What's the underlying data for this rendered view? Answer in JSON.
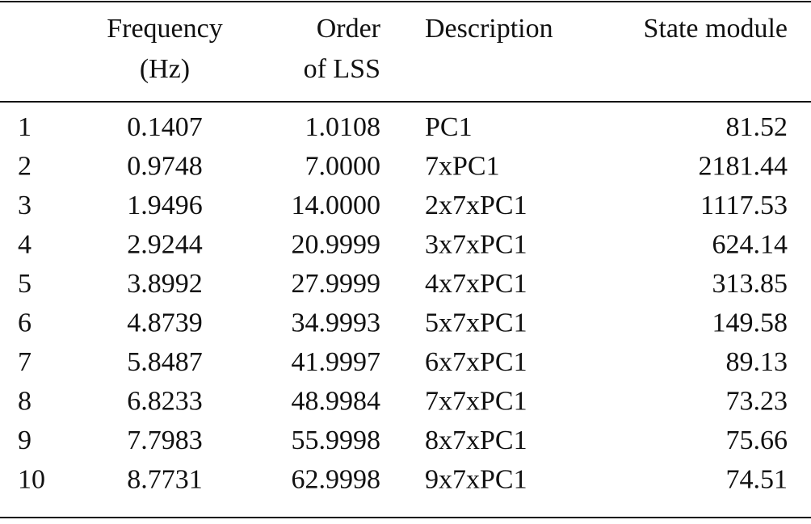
{
  "table": {
    "headers": [
      [
        "Frequency",
        "(Hz)"
      ],
      [
        "Order",
        "of LSS"
      ],
      [
        "Description"
      ],
      [
        "State module"
      ]
    ],
    "rows": [
      [
        "1",
        "0.1407",
        "1.0108",
        "PC1",
        "81.52"
      ],
      [
        "2",
        "0.9748",
        "7.0000",
        "7xPC1",
        "2181.44"
      ],
      [
        "3",
        "1.9496",
        "14.0000",
        "2x7xPC1",
        "1117.53"
      ],
      [
        "4",
        "2.9244",
        "20.9999",
        "3x7xPC1",
        "624.14"
      ],
      [
        "5",
        "3.8992",
        "27.9999",
        "4x7xPC1",
        "313.85"
      ],
      [
        "6",
        "4.8739",
        "34.9993",
        "5x7xPC1",
        "149.58"
      ],
      [
        "7",
        "5.8487",
        "41.9997",
        "6x7xPC1",
        "89.13"
      ],
      [
        "8",
        "6.8233",
        "48.9984",
        "7x7xPC1",
        "73.23"
      ],
      [
        "9",
        "7.7983",
        "55.9998",
        "8x7xPC1",
        "75.66"
      ],
      [
        "10",
        "8.7731",
        "62.9998",
        "9x7xPC1",
        "74.51"
      ]
    ]
  }
}
